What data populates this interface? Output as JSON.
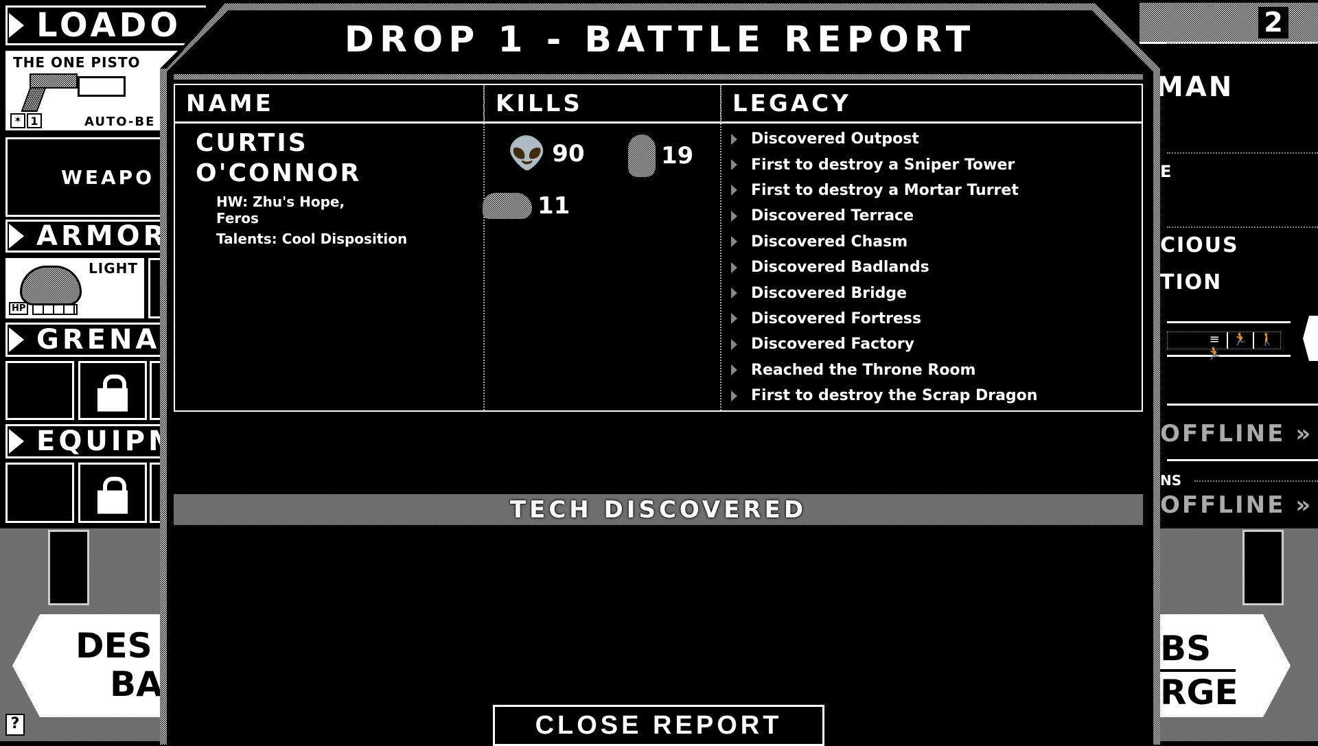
{
  "left_panel": {
    "loadout_label": "LOADO",
    "weapon_name": "THE ONE PISTO",
    "weapon_level": "1",
    "weapon_mode": "AUTO-BE",
    "weapon_slot_label": "WEAPO",
    "armor_label": "ARMOR",
    "armor_type": "LIGHT",
    "armor_hp_label": "HP",
    "grenade_label": "GRENA",
    "equipment_label": "EQUIPM",
    "bottom_button_line1": "DES",
    "bottom_button_line2": "BA",
    "help_label": "?"
  },
  "right_panel": {
    "header_number": "2",
    "line1": "MAN",
    "line2": "E",
    "line3": "CIOUS",
    "line4": "TION",
    "status1": "OFFLINE »",
    "section_label": "NS",
    "status2": "OFFLINE »",
    "bottom_button_line1": "BS",
    "bottom_button_line2": "RGE"
  },
  "modal": {
    "title": "DROP 1 - BATTLE REPORT",
    "columns": [
      "NAME",
      "KILLS",
      "LEGACY"
    ],
    "soldier": {
      "first_name": "CURTIS",
      "last_name": "O'CONNOR",
      "homeworld_line1": "HW: Zhu's Hope,",
      "homeworld_line2": "Feros",
      "talents": "Talents: Cool Disposition"
    },
    "kills": [
      {
        "icon": "alien-icon",
        "count": "90"
      },
      {
        "icon": "turret-icon",
        "count": "19"
      },
      {
        "icon": "crawler-icon",
        "count": "11"
      }
    ],
    "legacy": [
      "Discovered Outpost",
      "First to destroy a Sniper Tower",
      "First to destroy a Mortar Turret",
      "Discovered Terrace",
      "Discovered Chasm",
      "Discovered Badlands",
      "Discovered Bridge",
      "Discovered Fortress",
      "Discovered Factory",
      "Reached the Throne Room",
      "First to destroy the Scrap Dragon"
    ],
    "tech_heading": "TECH DISCOVERED",
    "close_label": "CLOSE REPORT"
  }
}
